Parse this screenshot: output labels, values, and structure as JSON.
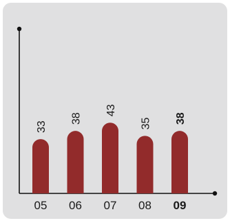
{
  "chart_data": {
    "type": "bar",
    "categories": [
      "05",
      "06",
      "07",
      "08",
      "09"
    ],
    "values": [
      33,
      38,
      43,
      35,
      38
    ],
    "highlighted_category": "09",
    "bar_color": "#922b2b",
    "axis_color": "#111111",
    "background_color": "#e0e0e1",
    "ylim": [
      0,
      100
    ],
    "grid": false,
    "title": "",
    "xlabel": "",
    "ylabel": ""
  }
}
